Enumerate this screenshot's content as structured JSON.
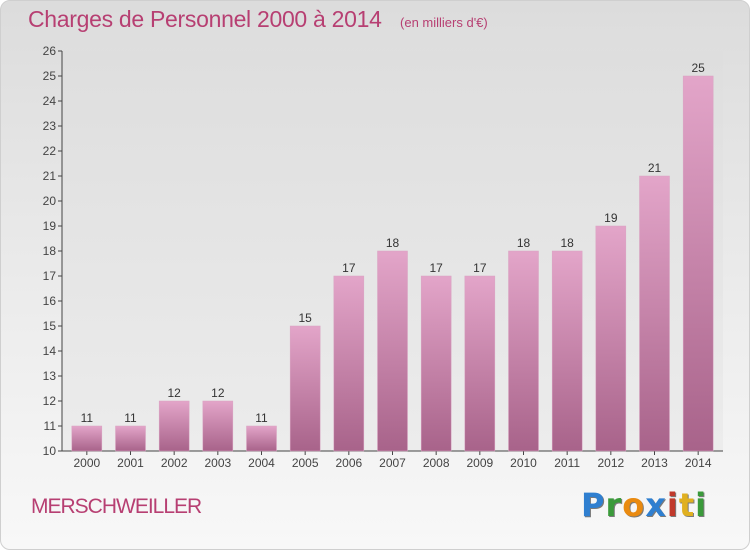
{
  "header": {
    "title": "Charges de Personnel 2000 à 2014",
    "subtitle": "(en milliers d'€)"
  },
  "footer": {
    "commune": "MERSCHWEILLER",
    "logo_text": "Proxiti"
  },
  "colors": {
    "title": "#b73f72",
    "bar_top": "#e3a5c9",
    "bar_bottom": "#a8638a"
  },
  "chart_data": {
    "type": "bar",
    "title": "Charges de Personnel 2000 à 2014",
    "subtitle": "(en milliers d'€)",
    "categories": [
      "2000",
      "2001",
      "2002",
      "2003",
      "2004",
      "2005",
      "2006",
      "2007",
      "2008",
      "2009",
      "2010",
      "2011",
      "2012",
      "2013",
      "2014"
    ],
    "values": [
      11,
      11,
      12,
      12,
      11,
      15,
      17,
      18,
      17,
      17,
      18,
      18,
      19,
      21,
      25
    ],
    "ylim": [
      10,
      26
    ],
    "yticks": [
      10,
      11,
      12,
      13,
      14,
      15,
      16,
      17,
      18,
      19,
      20,
      21,
      22,
      23,
      24,
      25,
      26
    ],
    "grid": false,
    "legend": "none"
  }
}
